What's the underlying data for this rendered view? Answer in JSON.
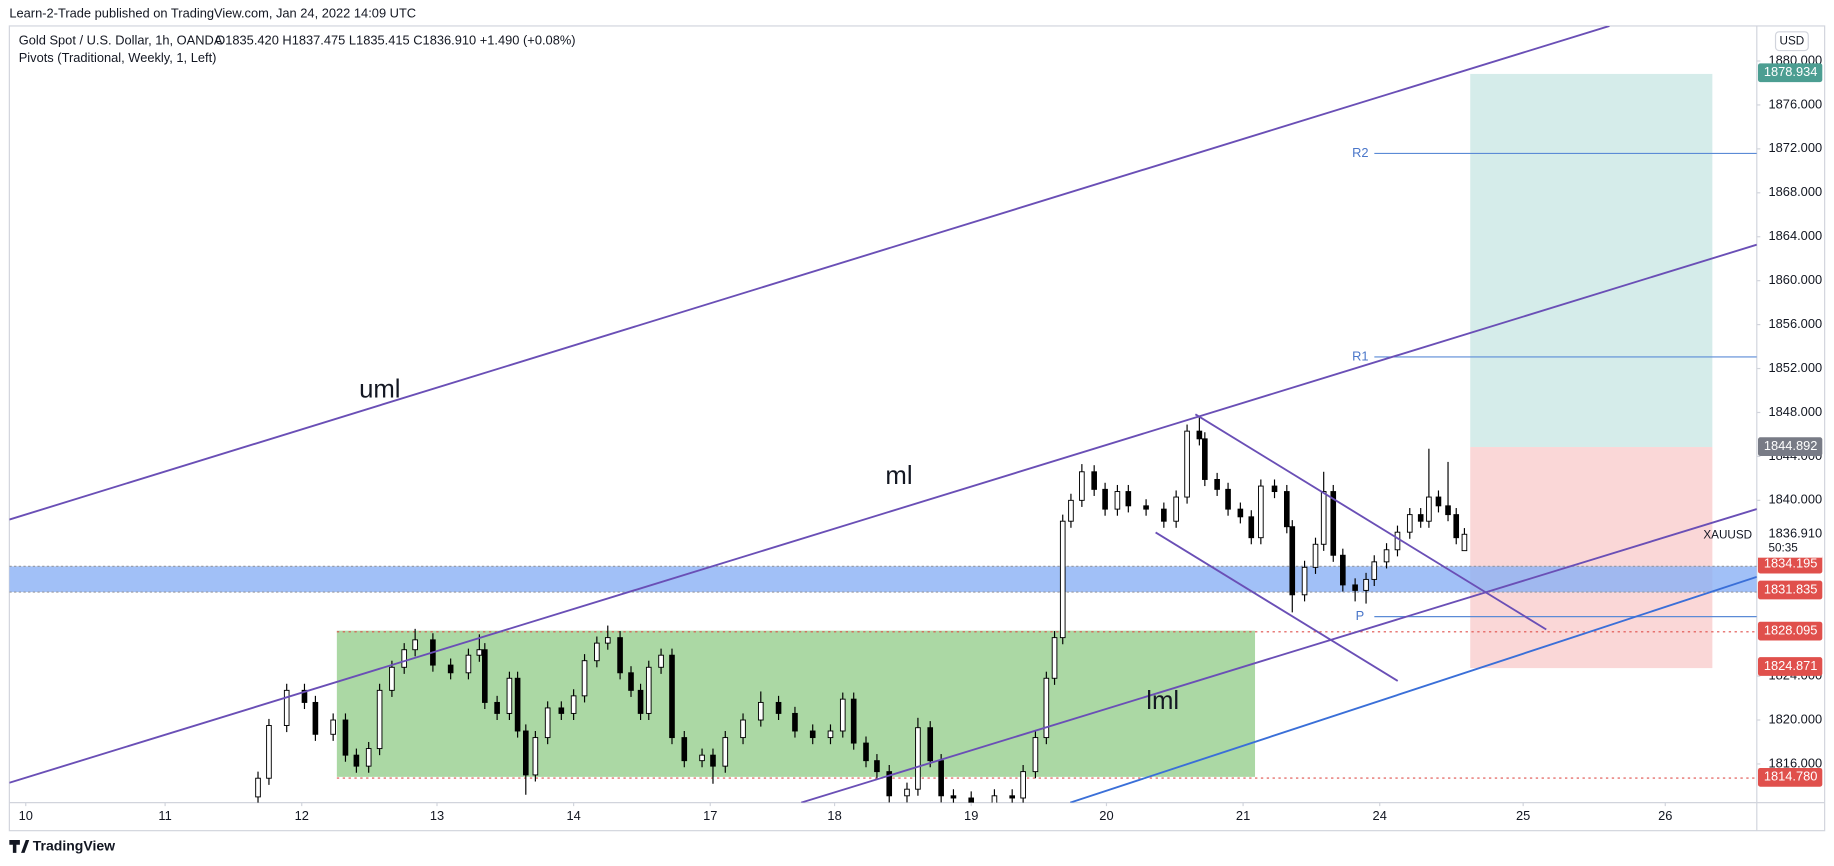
{
  "header": "Learn-2-Trade published on TradingView.com, Jan 24, 2022 14:09 UTC",
  "footer": "TradingView",
  "chart_data": {
    "type": "candlestick",
    "symbol": "Gold Spot / U.S. Dollar, 1h, OANDA",
    "ohlc_text": "O1835.420 H1837.475 L1835.415 C1836.910 +1.490 (+0.08%)",
    "indicator": "Pivots (Traditional, Weekly, 1, Left)",
    "currency": "USD",
    "up_color": "#ffffff",
    "down_color": "#000000",
    "grid": false,
    "x": [
      1.7,
      1.78,
      1.91,
      2.04,
      2.12,
      2.25,
      2.34,
      2.42,
      2.51,
      2.59,
      2.68,
      2.77,
      2.85,
      2.98,
      3.11,
      3.24,
      3.32,
      3.36,
      3.45,
      3.54,
      3.6,
      3.66,
      3.73,
      3.82,
      3.92,
      4.01,
      4.09,
      4.18,
      4.26,
      4.35,
      4.43,
      4.5,
      4.56,
      4.65,
      4.73,
      4.82,
      4.95,
      5.03,
      5.12,
      5.25,
      5.38,
      5.51,
      5.63,
      5.76,
      5.89,
      5.98,
      6.06,
      6.15,
      6.23,
      6.32,
      6.45,
      6.53,
      6.62,
      6.7,
      6.79,
      6.92,
      7.09,
      7.22,
      7.3,
      7.39,
      7.47,
      7.53,
      7.59,
      7.65,
      7.73,
      7.82,
      7.9,
      7.99,
      8.07,
      8.2,
      8.33,
      8.42,
      8.5,
      8.59,
      8.63,
      8.72,
      8.8,
      8.89,
      8.97,
      9.04,
      9.14,
      9.23,
      9.27,
      9.36,
      9.44,
      9.5,
      9.57,
      9.64,
      9.73,
      9.81,
      9.87,
      9.96,
      10.04,
      10.13,
      10.21,
      10.27,
      10.34,
      10.41,
      10.47,
      10.53
    ],
    "ohlc": [
      [
        1813.0,
        1815.3,
        1812.4,
        1814.7
      ],
      [
        1814.7,
        1820.1,
        1814.1,
        1819.5
      ],
      [
        1819.5,
        1823.3,
        1818.9,
        1822.7
      ],
      [
        1822.7,
        1823.3,
        1821.0,
        1821.6
      ],
      [
        1821.6,
        1822.2,
        1818.1,
        1818.7
      ],
      [
        1818.7,
        1820.6,
        1818.1,
        1820.0
      ],
      [
        1820.0,
        1820.6,
        1816.2,
        1816.8
      ],
      [
        1816.8,
        1817.4,
        1815.2,
        1815.8
      ],
      [
        1815.8,
        1818.0,
        1815.2,
        1817.4
      ],
      [
        1817.4,
        1823.3,
        1816.8,
        1822.7
      ],
      [
        1822.7,
        1825.4,
        1822.1,
        1824.8
      ],
      [
        1824.8,
        1827.0,
        1824.2,
        1826.4
      ],
      [
        1826.4,
        1828.3,
        1825.8,
        1827.3
      ],
      [
        1827.3,
        1827.9,
        1824.4,
        1825.0
      ],
      [
        1825.0,
        1825.6,
        1823.7,
        1824.3
      ],
      [
        1824.3,
        1826.5,
        1823.7,
        1825.9
      ],
      [
        1825.9,
        1827.8,
        1825.3,
        1826.4
      ],
      [
        1826.4,
        1827.0,
        1821.0,
        1821.6
      ],
      [
        1821.6,
        1822.2,
        1820.0,
        1820.6
      ],
      [
        1820.6,
        1824.4,
        1820.0,
        1823.8
      ],
      [
        1823.8,
        1824.4,
        1818.4,
        1819.0
      ],
      [
        1819.0,
        1819.6,
        1813.2,
        1815.0
      ],
      [
        1815.0,
        1819.0,
        1814.4,
        1818.4
      ],
      [
        1818.4,
        1821.7,
        1817.8,
        1821.1
      ],
      [
        1821.1,
        1821.7,
        1820.0,
        1820.6
      ],
      [
        1820.6,
        1822.8,
        1820.0,
        1822.2
      ],
      [
        1822.2,
        1826.0,
        1821.6,
        1825.4
      ],
      [
        1825.4,
        1827.6,
        1824.8,
        1827.0
      ],
      [
        1827.0,
        1828.6,
        1826.4,
        1827.5
      ],
      [
        1827.5,
        1828.1,
        1823.7,
        1824.3
      ],
      [
        1824.3,
        1824.9,
        1822.1,
        1822.7
      ],
      [
        1822.7,
        1823.3,
        1820.0,
        1820.6
      ],
      [
        1820.6,
        1825.4,
        1820.0,
        1824.8
      ],
      [
        1824.8,
        1826.5,
        1824.2,
        1825.9
      ],
      [
        1825.9,
        1826.5,
        1817.8,
        1818.4
      ],
      [
        1818.4,
        1819.0,
        1815.7,
        1816.3
      ],
      [
        1816.3,
        1817.4,
        1815.7,
        1816.8
      ],
      [
        1816.8,
        1817.4,
        1814.2,
        1815.8
      ],
      [
        1815.8,
        1819.0,
        1815.2,
        1818.4
      ],
      [
        1818.4,
        1820.6,
        1817.8,
        1820.0
      ],
      [
        1820.0,
        1822.6,
        1819.4,
        1821.6
      ],
      [
        1821.6,
        1822.2,
        1820.0,
        1820.6
      ],
      [
        1820.6,
        1821.2,
        1818.4,
        1819.0
      ],
      [
        1819.0,
        1819.6,
        1817.8,
        1818.4
      ],
      [
        1818.4,
        1819.6,
        1817.8,
        1819.0
      ],
      [
        1819.0,
        1822.5,
        1818.4,
        1821.9
      ],
      [
        1821.9,
        1822.5,
        1817.3,
        1817.9
      ],
      [
        1817.9,
        1818.5,
        1815.7,
        1816.3
      ],
      [
        1816.3,
        1816.9,
        1814.7,
        1815.3
      ],
      [
        1815.3,
        1815.9,
        1812.5,
        1813.1
      ],
      [
        1813.1,
        1814.3,
        1812.5,
        1813.7
      ],
      [
        1813.7,
        1820.2,
        1813.1,
        1819.3
      ],
      [
        1819.3,
        1819.9,
        1815.7,
        1816.3
      ],
      [
        1816.3,
        1816.9,
        1812.5,
        1813.1
      ],
      [
        1813.1,
        1813.7,
        1812.0,
        1812.9
      ],
      [
        1812.9,
        1813.5,
        1811.8,
        1812.3
      ],
      [
        1812.3,
        1813.7,
        1811.8,
        1813.1
      ],
      [
        1813.1,
        1813.7,
        1812.2,
        1812.9
      ],
      [
        1812.9,
        1815.9,
        1812.3,
        1815.3
      ],
      [
        1815.3,
        1819.0,
        1814.7,
        1818.4
      ],
      [
        1818.4,
        1824.4,
        1817.8,
        1823.8
      ],
      [
        1823.8,
        1828.1,
        1823.2,
        1827.5
      ],
      [
        1827.5,
        1838.7,
        1826.9,
        1838.1
      ],
      [
        1838.1,
        1840.6,
        1837.5,
        1840.0
      ],
      [
        1840.0,
        1843.3,
        1839.4,
        1842.6
      ],
      [
        1842.6,
        1843.2,
        1840.4,
        1841.0
      ],
      [
        1841.0,
        1841.6,
        1838.6,
        1839.2
      ],
      [
        1839.2,
        1841.4,
        1838.6,
        1840.8
      ],
      [
        1840.8,
        1841.4,
        1838.9,
        1839.5
      ],
      [
        1839.5,
        1840.1,
        1838.6,
        1839.2
      ],
      [
        1839.2,
        1839.8,
        1837.5,
        1838.1
      ],
      [
        1838.1,
        1840.9,
        1837.5,
        1840.3
      ],
      [
        1840.3,
        1846.9,
        1839.7,
        1846.3
      ],
      [
        1846.3,
        1847.6,
        1845.0,
        1845.6
      ],
      [
        1845.6,
        1846.2,
        1841.3,
        1841.9
      ],
      [
        1841.9,
        1842.5,
        1840.4,
        1841.0
      ],
      [
        1841.0,
        1841.6,
        1838.6,
        1839.2
      ],
      [
        1839.2,
        1839.8,
        1837.9,
        1838.5
      ],
      [
        1838.5,
        1839.1,
        1836.0,
        1836.6
      ],
      [
        1836.6,
        1841.9,
        1836.0,
        1841.3
      ],
      [
        1841.3,
        1841.9,
        1840.2,
        1840.8
      ],
      [
        1840.8,
        1841.4,
        1837.0,
        1837.6
      ],
      [
        1837.6,
        1838.2,
        1829.8,
        1831.4
      ],
      [
        1831.4,
        1834.5,
        1830.8,
        1833.9
      ],
      [
        1833.9,
        1836.6,
        1833.3,
        1836.0
      ],
      [
        1836.0,
        1842.6,
        1835.4,
        1840.8
      ],
      [
        1840.8,
        1841.4,
        1834.4,
        1835.0
      ],
      [
        1835.0,
        1835.6,
        1831.7,
        1832.3
      ],
      [
        1832.3,
        1832.9,
        1830.8,
        1831.8
      ],
      [
        1831.8,
        1833.4,
        1830.6,
        1832.8
      ],
      [
        1832.8,
        1835.0,
        1832.2,
        1834.4
      ],
      [
        1834.4,
        1836.1,
        1833.8,
        1835.5
      ],
      [
        1835.5,
        1837.7,
        1834.9,
        1837.1
      ],
      [
        1837.1,
        1839.3,
        1836.5,
        1838.7
      ],
      [
        1838.7,
        1839.3,
        1837.5,
        1838.1
      ],
      [
        1838.1,
        1844.7,
        1837.5,
        1840.3
      ],
      [
        1840.3,
        1840.9,
        1838.9,
        1839.5
      ],
      [
        1839.5,
        1843.5,
        1838.1,
        1838.7
      ],
      [
        1838.7,
        1839.3,
        1836.0,
        1836.6
      ],
      [
        1835.42,
        1837.475,
        1835.415,
        1836.91
      ]
    ],
    "xlim": [
      -0.12,
      12.67
    ],
    "xticks": [
      {
        "value": 0,
        "label": "10"
      },
      {
        "value": 1.02,
        "label": "11"
      },
      {
        "value": 2.02,
        "label": "12"
      },
      {
        "value": 3.01,
        "label": "13"
      },
      {
        "value": 4.01,
        "label": "14"
      },
      {
        "value": 5.01,
        "label": "17"
      },
      {
        "value": 5.92,
        "label": "18"
      },
      {
        "value": 6.92,
        "label": "19"
      },
      {
        "value": 7.91,
        "label": "20"
      },
      {
        "value": 8.91,
        "label": "21"
      },
      {
        "value": 9.91,
        "label": "24"
      },
      {
        "value": 10.96,
        "label": "25"
      },
      {
        "value": 12.0,
        "label": "26"
      }
    ],
    "ylim": [
      1812.48,
      1883.19
    ],
    "yticks": [
      {
        "value": 1816,
        "label": "1816.000"
      },
      {
        "value": 1820,
        "label": "1820.000"
      },
      {
        "value": 1824,
        "label": "1824.000"
      },
      {
        "value": 1840,
        "label": "1840.000"
      },
      {
        "value": 1844,
        "label": "1844.000"
      },
      {
        "value": 1848,
        "label": "1848.000"
      },
      {
        "value": 1852,
        "label": "1852.000"
      },
      {
        "value": 1856,
        "label": "1856.000"
      },
      {
        "value": 1860,
        "label": "1860.000"
      },
      {
        "value": 1864,
        "label": "1864.000"
      },
      {
        "value": 1868,
        "label": "1868.000"
      },
      {
        "value": 1872,
        "label": "1872.000"
      },
      {
        "value": 1876,
        "label": "1876.000"
      },
      {
        "value": 1880,
        "label": "1880.000"
      }
    ],
    "price_labels": [
      {
        "value": 1878.934,
        "label": "1878.934",
        "color": "#4c9e92"
      },
      {
        "value": 1844.892,
        "label": "1844.892",
        "color": "#787b86"
      },
      {
        "value": 1834.195,
        "label": "1834.195",
        "color": "#e0504c"
      },
      {
        "value": 1831.835,
        "label": "1831.835",
        "color": "#e0504c"
      },
      {
        "value": 1828.095,
        "label": "1828.095",
        "color": "#e0504c"
      },
      {
        "value": 1824.871,
        "label": "1824.871",
        "color": "#e0504c"
      },
      {
        "value": 1814.78,
        "label": "1814.780",
        "color": "#e0504c"
      }
    ],
    "last_price": {
      "value": 1836.91,
      "label": "1836.910",
      "symbol": "XAUUSD",
      "countdown": "50:35"
    },
    "annotations": [
      "uml",
      "ml",
      "lml"
    ],
    "pivots": [
      "R2",
      "R1",
      "P"
    ]
  }
}
